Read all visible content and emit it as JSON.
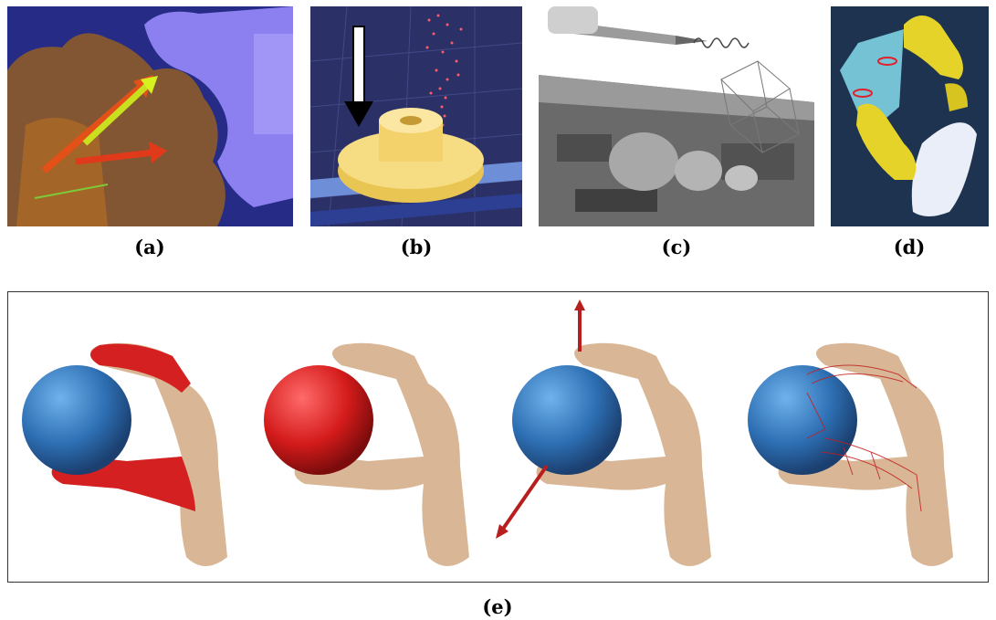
{
  "figure": {
    "panels": [
      {
        "id": "a",
        "caption": "(a)",
        "description_icon": "gear-knob-force-arrows"
      },
      {
        "id": "b",
        "caption": "(b)",
        "description_icon": "knob-particle-stream"
      },
      {
        "id": "c",
        "caption": "(c)",
        "description_icon": "tool-on-circuit-board"
      },
      {
        "id": "d",
        "caption": "(d)",
        "description_icon": "hand-grasp-box"
      },
      {
        "id": "e",
        "caption": "(e)",
        "description_icon": "hand-sphere-sequence"
      }
    ]
  },
  "colors": {
    "panel_a_bg": "#2a2f8a",
    "panel_b_bg": "#2a2f62",
    "panel_c_bg": "#ffffff",
    "panel_d_bg": "#1d3350",
    "sphere_blue": "#2f72b8",
    "sphere_red": "#d42020",
    "hand_skin": "#d9b796",
    "highlight_red": "#d01818",
    "knob_yellow": "#f3d873"
  }
}
